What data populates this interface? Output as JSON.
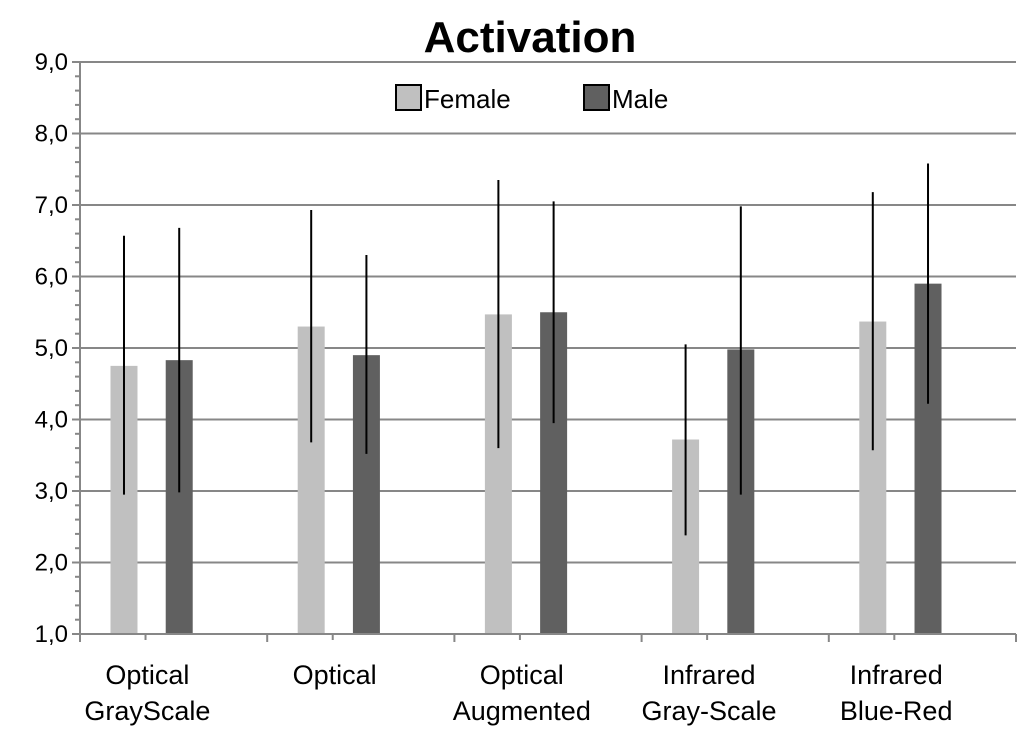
{
  "chart_data": {
    "type": "bar",
    "title": "Activation",
    "xlabel": "",
    "ylabel": "",
    "ylim": [
      1.0,
      9.0
    ],
    "yticks": [
      "1,0",
      "2,0",
      "3,0",
      "4,0",
      "5,0",
      "6,0",
      "7,0",
      "8,0",
      "9,0"
    ],
    "grid": true,
    "legend_position": "top-center",
    "categories": [
      [
        "Optical",
        "GrayScale"
      ],
      [
        "Optical"
      ],
      [
        "Optical",
        "Augmented"
      ],
      [
        "Infrared",
        "Gray-Scale"
      ],
      [
        "Infrared",
        "Blue-Red"
      ]
    ],
    "series": [
      {
        "name": "Female",
        "color": "#c0c0c0",
        "values": [
          4.75,
          5.3,
          5.47,
          3.72,
          5.37
        ],
        "error_low": [
          2.95,
          3.68,
          3.6,
          2.38,
          3.57
        ],
        "error_high": [
          6.57,
          6.93,
          7.35,
          5.05,
          7.18
        ]
      },
      {
        "name": "Male",
        "color": "#606060",
        "values": [
          4.83,
          4.9,
          5.5,
          4.98,
          5.9
        ],
        "error_low": [
          2.98,
          3.52,
          3.95,
          2.95,
          4.22
        ],
        "error_high": [
          6.68,
          6.3,
          7.05,
          6.98,
          7.58
        ]
      }
    ]
  }
}
